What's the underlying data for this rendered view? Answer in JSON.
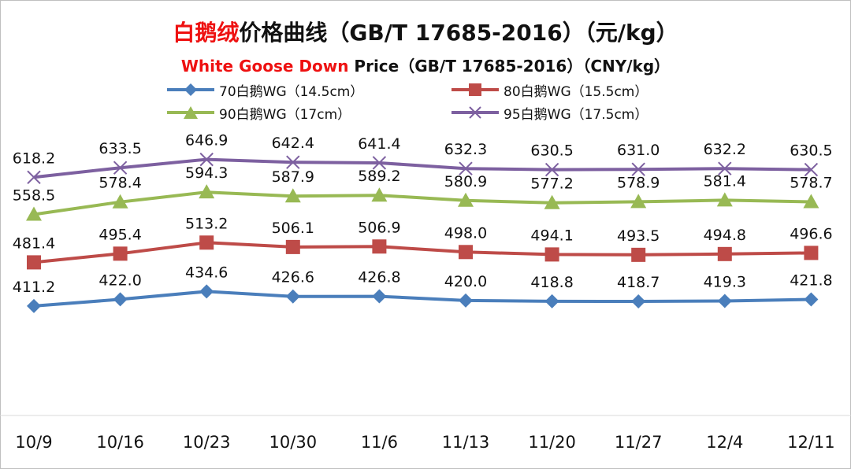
{
  "title": {
    "cn_red": "白鹅绒",
    "cn_rest": "价格曲线（GB/T 17685-2016）（元/kg）",
    "en_red": "White Goose Down",
    "en_rest": " Price（GB/T 17685-2016）（CNY/kg）"
  },
  "colors": {
    "s70": "#4a7ebb",
    "s80": "#be4b48",
    "s90": "#98b954",
    "s95": "#7d60a0",
    "title_red": "#ee1111"
  },
  "chart_data": {
    "type": "line",
    "x": [
      "10/9",
      "10/16",
      "10/23",
      "10/30",
      "11/6",
      "11/13",
      "11/20",
      "11/27",
      "12/4",
      "12/11"
    ],
    "series": [
      {
        "name": "70白鹅WG（14.5cm）",
        "marker": "diamond",
        "values": [
          411.2,
          422.0,
          434.6,
          426.6,
          426.8,
          420.0,
          418.8,
          418.7,
          419.3,
          421.8
        ]
      },
      {
        "name": "80白鹅WG（15.5cm）",
        "marker": "square",
        "values": [
          481.4,
          495.4,
          513.2,
          506.1,
          506.9,
          498.0,
          494.1,
          493.5,
          494.8,
          496.6
        ]
      },
      {
        "name": "90白鹅WG（17cm）",
        "marker": "triangle",
        "values": [
          558.5,
          578.4,
          594.3,
          587.9,
          589.2,
          580.9,
          577.2,
          578.9,
          581.4,
          578.7
        ]
      },
      {
        "name": "95白鹅WG（17.5cm）",
        "marker": "x",
        "values": [
          618.2,
          633.5,
          646.9,
          642.4,
          641.4,
          632.3,
          630.5,
          631.0,
          632.2,
          630.5
        ]
      }
    ],
    "ylim": [
      220,
      840
    ],
    "grid": false,
    "legend": "top",
    "data_labels": true
  }
}
